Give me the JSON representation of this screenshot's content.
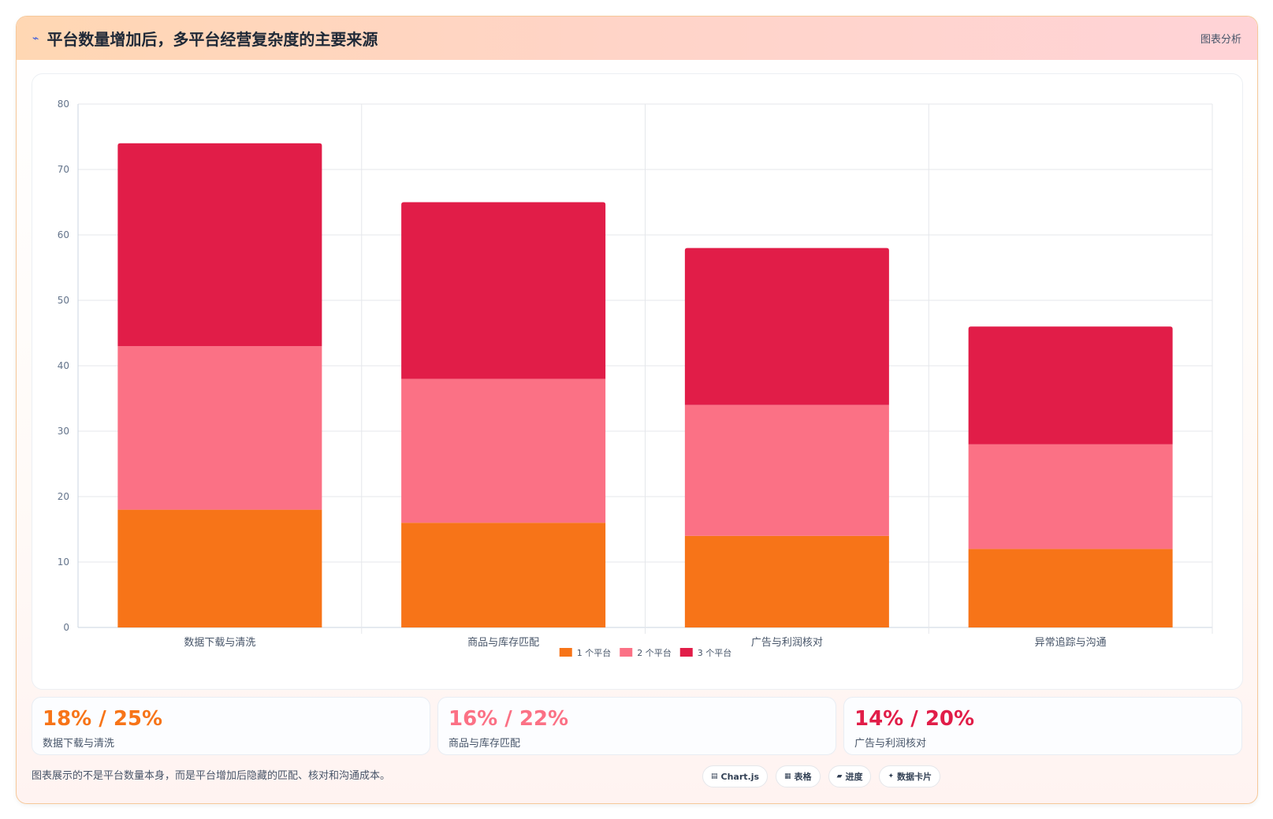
{
  "header": {
    "title": "平台数量增加后，多平台经营复杂度的主要来源",
    "icon": "bolt-icon",
    "right_label": "图表分析"
  },
  "chart_data": {
    "type": "bar",
    "stacked": true,
    "categories": [
      "数据下载与清洗",
      "商品与库存匹配",
      "广告与利润核对",
      "异常追踪与沟通"
    ],
    "series": [
      {
        "name": "1 个平台",
        "color": "#f77418",
        "values": [
          18,
          16,
          14,
          12
        ]
      },
      {
        "name": "2 个平台",
        "color": "#fb7185",
        "values": [
          25,
          22,
          20,
          16
        ]
      },
      {
        "name": "3 个平台",
        "color": "#e11d48",
        "values": [
          31,
          27,
          24,
          18
        ]
      }
    ],
    "ylim": [
      0,
      80
    ],
    "yticks": [
      0,
      10,
      20,
      30,
      40,
      50,
      60,
      70,
      80
    ],
    "grid": true,
    "legend": "bottom"
  },
  "stats": [
    {
      "value": "18% / 25%",
      "label": "数据下载与清洗",
      "color": "#f77418"
    },
    {
      "value": "16% / 22%",
      "label": "商品与库存匹配",
      "color": "#fb7185"
    },
    {
      "value": "14% / 20%",
      "label": "广告与利润核对",
      "color": "#e11d48"
    }
  ],
  "footer": {
    "note": "图表展示的不是平台数量本身，而是平台增加后隐藏的匹配、核对和沟通成本。",
    "tags": [
      {
        "icon": "chart-icon",
        "label": "Chart.js"
      },
      {
        "icon": "table-icon",
        "label": "表格"
      },
      {
        "icon": "progress-icon",
        "label": "进度"
      },
      {
        "icon": "sparkle-icon",
        "label": "数据卡片"
      }
    ]
  }
}
